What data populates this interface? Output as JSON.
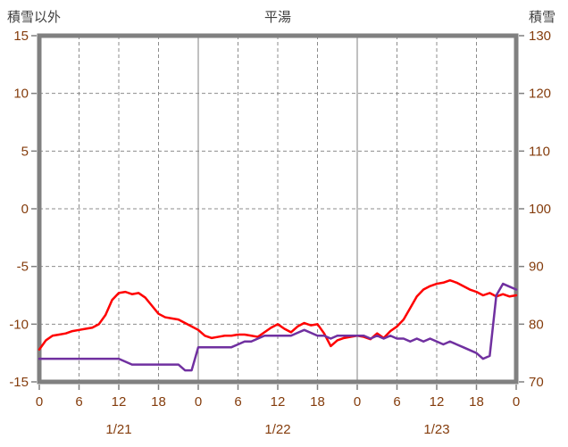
{
  "chart_data": {
    "type": "line",
    "title": "平湯",
    "left_axis": {
      "label": "積雪以外",
      "min": -15,
      "max": 15,
      "ticks": [
        15,
        10,
        5,
        0,
        -5,
        -10,
        -15
      ]
    },
    "right_axis": {
      "label": "積雪",
      "min": 70,
      "max": 130,
      "ticks": [
        130,
        120,
        110,
        100,
        90,
        80,
        70
      ]
    },
    "x_axis": {
      "min_hour": 0,
      "max_hour": 72,
      "tick_hours": [
        0,
        6,
        12,
        18,
        24,
        30,
        36,
        42,
        48,
        54,
        60,
        66,
        72
      ],
      "tick_labels": [
        "0",
        "6",
        "12",
        "18",
        "0",
        "6",
        "12",
        "18",
        "0",
        "6",
        "12",
        "18",
        "0"
      ],
      "date_labels": [
        {
          "label": "1/21",
          "hour": 12
        },
        {
          "label": "1/22",
          "hour": 36
        },
        {
          "label": "1/23",
          "hour": 60
        }
      ]
    },
    "grid": {
      "horizontal": "dashed",
      "minor_vertical": "dashed",
      "day_boundary_vertical": "solid"
    },
    "legend": "none",
    "colors": {
      "frame": "#808080",
      "grid_dashed": "#8c8c8c",
      "grid_solid": "#808080",
      "tick_text": "#843C0C",
      "title_text": "#3f3f3f"
    },
    "series": [
      {
        "name": "non-snow-red-line",
        "axis": "left",
        "color": "#FF0000",
        "values": [
          -12.2,
          -11.4,
          -11.0,
          -10.9,
          -10.8,
          -10.6,
          -10.5,
          -10.4,
          -10.3,
          -10.0,
          -9.2,
          -7.9,
          -7.3,
          -7.2,
          -7.4,
          -7.3,
          -7.7,
          -8.4,
          -9.1,
          -9.4,
          -9.5,
          -9.6,
          -9.9,
          -10.2,
          -10.5,
          -11.0,
          -11.2,
          -11.1,
          -11.0,
          -11.0,
          -10.9,
          -10.9,
          -11.0,
          -11.1,
          -10.7,
          -10.3,
          -10.0,
          -10.4,
          -10.7,
          -10.2,
          -9.9,
          -10.1,
          -10.0,
          -10.8,
          -11.9,
          -11.4,
          -11.2,
          -11.1,
          -11.0,
          -11.1,
          -11.3,
          -10.8,
          -11.2,
          -10.6,
          -10.2,
          -9.6,
          -8.6,
          -7.6,
          -7.0,
          -6.7,
          -6.5,
          -6.4,
          -6.2,
          -6.4,
          -6.7,
          -7.0,
          -7.2,
          -7.5,
          -7.3,
          -7.6,
          -7.4,
          -7.6,
          -7.5
        ]
      },
      {
        "name": "snow-depth-purple-line",
        "axis": "right",
        "color": "#7030A0",
        "values": [
          74,
          74,
          74,
          74,
          74,
          74,
          74,
          74,
          74,
          74,
          74,
          74,
          74,
          73.5,
          73,
          73,
          73,
          73,
          73,
          73,
          73,
          73,
          72,
          72,
          76,
          76,
          76,
          76,
          76,
          76,
          76.5,
          77,
          77,
          77.5,
          78,
          78,
          78,
          78,
          78,
          78.5,
          79,
          78.5,
          78,
          78,
          77.5,
          78,
          78,
          78,
          78,
          78,
          77.5,
          78,
          77.5,
          78,
          77.5,
          77.5,
          77,
          77.5,
          77,
          77.5,
          77,
          76.5,
          77,
          76.5,
          76,
          75.5,
          75,
          74,
          74.5,
          85,
          87,
          86.5,
          86
        ]
      }
    ]
  }
}
